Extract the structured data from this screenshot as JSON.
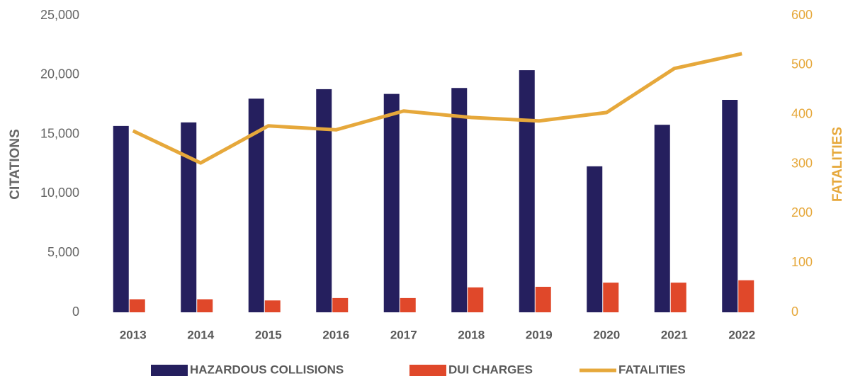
{
  "chart_data": {
    "type": "bar_line",
    "ylabel": "CITATIONS",
    "y2label": "FATALITIES",
    "categories": [
      "2013",
      "2014",
      "2015",
      "2016",
      "2017",
      "2018",
      "2019",
      "2020",
      "2021",
      "2022"
    ],
    "series": [
      {
        "name": "HAZARDOUS COLLISIONS",
        "type": "bar",
        "color": "#251f5e",
        "values": [
          15700,
          16000,
          18000,
          18800,
          18400,
          18900,
          20400,
          12300,
          15800,
          17900
        ]
      },
      {
        "name": "DUI CHARGES",
        "type": "bar",
        "color": "#e0482a",
        "values": [
          1100,
          1100,
          1000,
          1200,
          1200,
          2100,
          2150,
          2500,
          2500,
          2700
        ]
      },
      {
        "name": "FATALITIES",
        "type": "line",
        "axis": "y2",
        "color": "#e6a83b",
        "values": [
          367,
          302,
          377,
          369,
          407,
          394,
          387,
          404,
          493,
          523
        ]
      }
    ],
    "ylim": [
      0,
      25000
    ],
    "yticks": [
      0,
      {
        "value": 5000,
        "label": "5,000"
      },
      {
        "value": 10000,
        "label": "10,000"
      },
      {
        "value": 15000,
        "label": "15,000"
      },
      {
        "value": 20000,
        "label": "20,000"
      },
      {
        "value": 25000,
        "label": "25,000"
      }
    ],
    "y2lim": [
      0,
      600
    ],
    "y2ticks": [
      0,
      100,
      200,
      300,
      400,
      500,
      600
    ]
  }
}
